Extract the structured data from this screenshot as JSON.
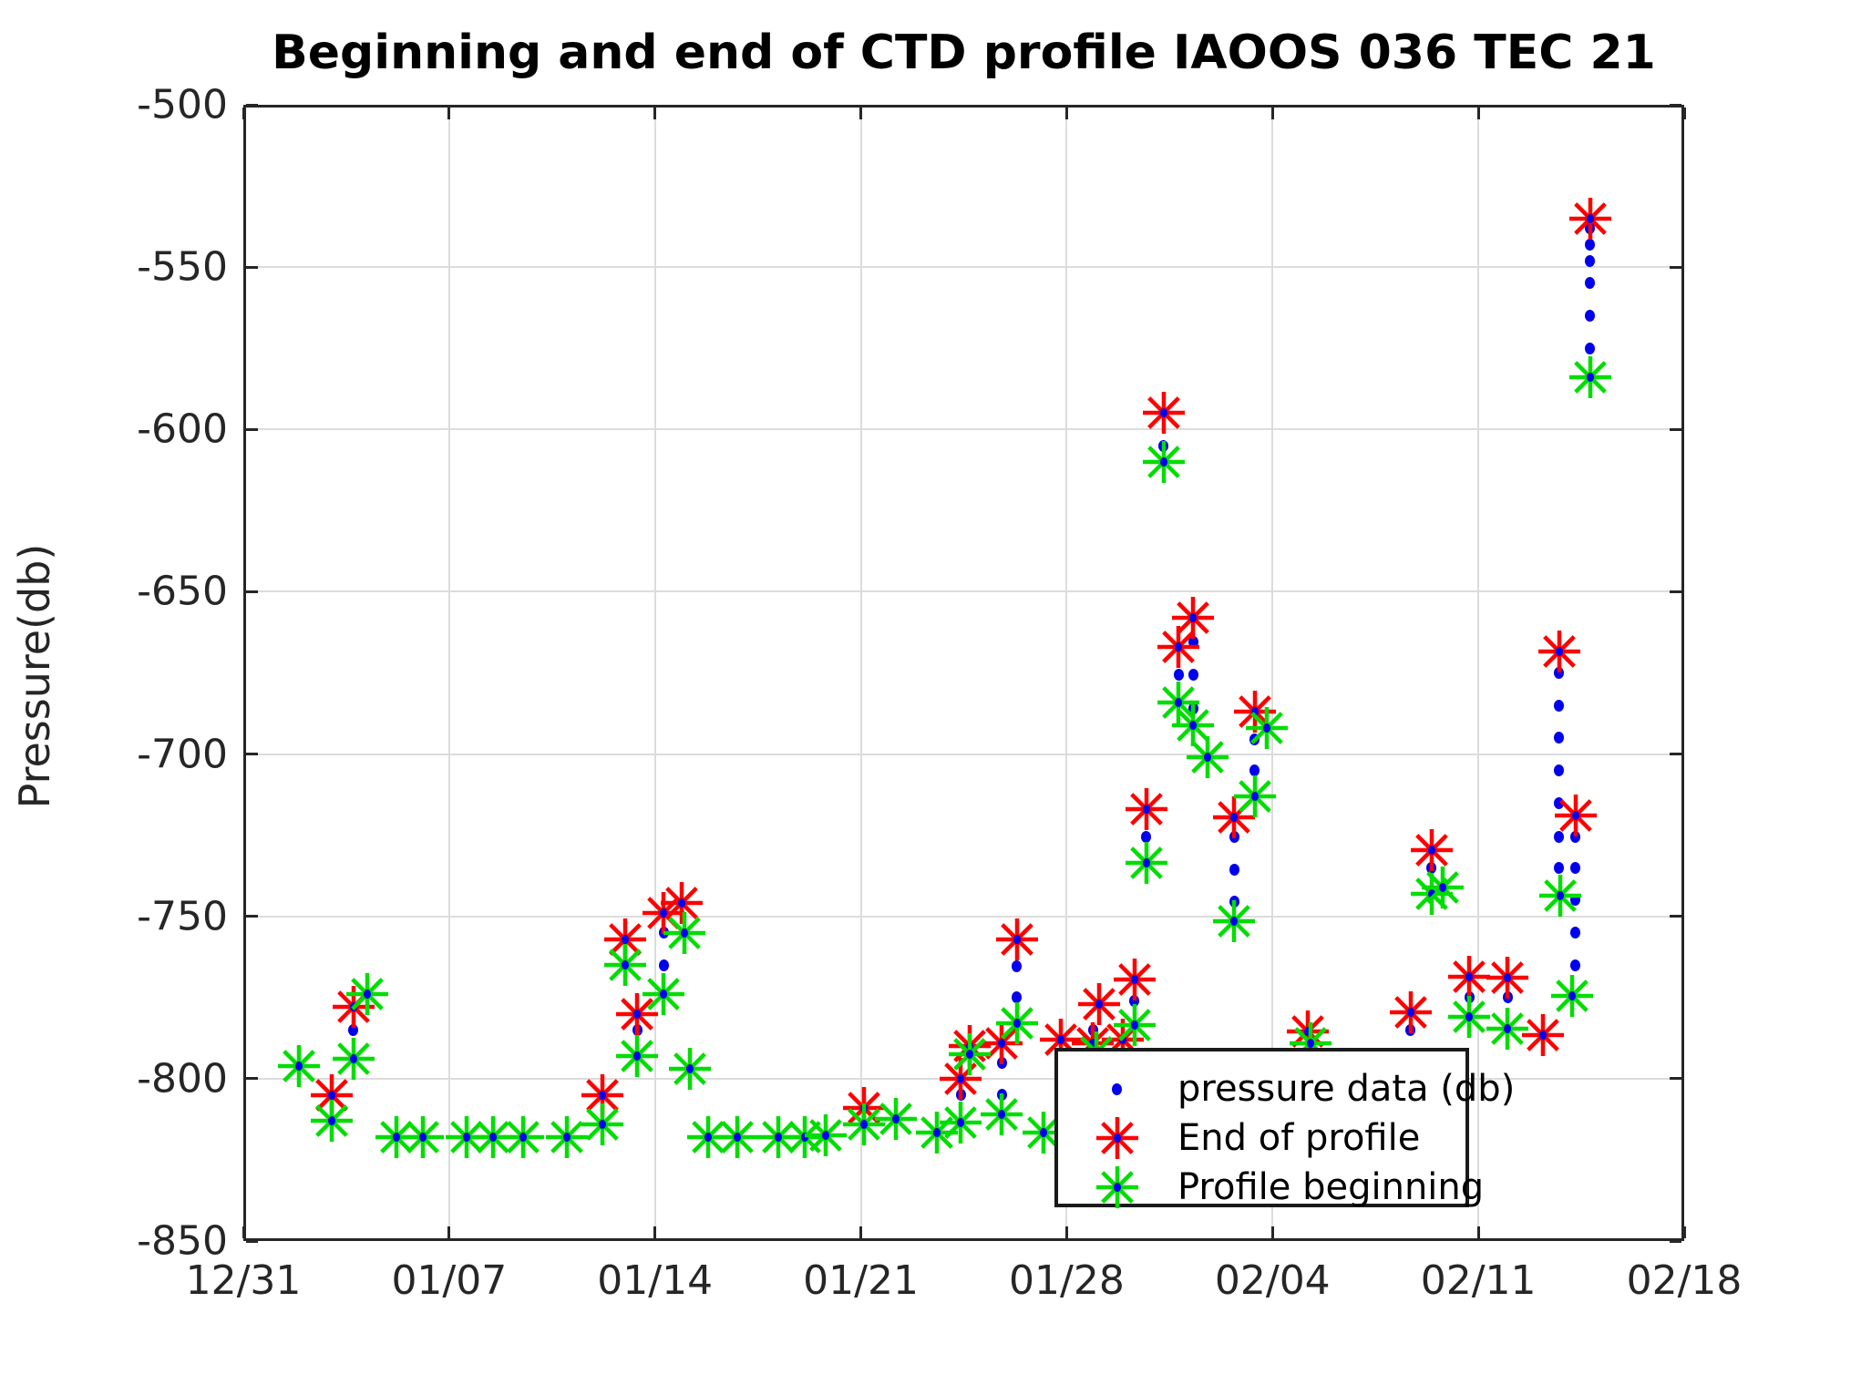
{
  "figure": {
    "title": "Beginning and end of CTD profile IAOOS 036 TEC 21",
    "ylabel": "Pressure(db)"
  },
  "chart_data": {
    "type": "scatter",
    "title": "Beginning and end of CTD profile IAOOS 036 TEC 21",
    "xlabel": "",
    "ylabel": "Pressure(db)",
    "grid": true,
    "x_axis": {
      "unit": "date (days after 12/31)",
      "tick_days": [
        0,
        7,
        14,
        21,
        28,
        35,
        42,
        49
      ],
      "tick_labels": [
        "12/31",
        "01/07",
        "01/14",
        "01/21",
        "01/28",
        "02/04",
        "02/11",
        "02/18"
      ],
      "range_days": [
        0,
        49
      ]
    },
    "y_axis": {
      "ticks": [
        -500,
        -550,
        -600,
        -650,
        -700,
        -750,
        -800,
        -850
      ],
      "range": [
        -850,
        -500
      ]
    },
    "legend": {
      "position": "inside lower right",
      "entries": [
        "pressure data (db)",
        "End of profile",
        "Profile beginning"
      ]
    },
    "series": [
      {
        "name": "pressure data (db)",
        "marker": "dot",
        "color": "#0000ee",
        "points": [
          [
            3.75,
            -785
          ],
          [
            13.4,
            -785
          ],
          [
            14.3,
            -755
          ],
          [
            14.3,
            -765
          ],
          [
            24.4,
            -805
          ],
          [
            25.8,
            -795
          ],
          [
            25.8,
            -805
          ],
          [
            26.3,
            -765.5
          ],
          [
            26.3,
            -775
          ],
          [
            28.9,
            -785
          ],
          [
            30.3,
            -776
          ],
          [
            30.7,
            -725.5
          ],
          [
            31.3,
            -605
          ],
          [
            31.8,
            -675.5
          ],
          [
            32.3,
            -665.5
          ],
          [
            32.3,
            -675.5
          ],
          [
            32.3,
            -686
          ],
          [
            33.7,
            -725.5
          ],
          [
            33.7,
            -735.5
          ],
          [
            33.7,
            -745.5
          ],
          [
            34.4,
            -695.5
          ],
          [
            34.4,
            -705
          ],
          [
            39.7,
            -785
          ],
          [
            40.4,
            -735
          ],
          [
            41.7,
            -775
          ],
          [
            43.0,
            -775
          ],
          [
            44.75,
            -675
          ],
          [
            44.75,
            -685
          ],
          [
            44.75,
            -695
          ],
          [
            44.75,
            -705
          ],
          [
            44.75,
            -715
          ],
          [
            44.75,
            -725.5
          ],
          [
            44.75,
            -735
          ],
          [
            45.3,
            -725.5
          ],
          [
            45.3,
            -735
          ],
          [
            45.3,
            -745
          ],
          [
            45.3,
            -755
          ],
          [
            45.3,
            -765
          ],
          [
            45.8,
            -538
          ],
          [
            45.8,
            -543
          ],
          [
            45.8,
            -548
          ],
          [
            45.8,
            -555
          ],
          [
            45.8,
            -565
          ],
          [
            45.8,
            -575
          ]
        ]
      },
      {
        "name": "End of profile",
        "marker": "asterisk",
        "color": "#ff0000",
        "points": [
          [
            3.0,
            -805
          ],
          [
            3.75,
            -778
          ],
          [
            12.2,
            -805
          ],
          [
            13.0,
            -757
          ],
          [
            13.4,
            -780
          ],
          [
            14.3,
            -749
          ],
          [
            14.9,
            -746
          ],
          [
            21.1,
            -809
          ],
          [
            24.4,
            -800
          ],
          [
            24.7,
            -790
          ],
          [
            25.8,
            -789
          ],
          [
            26.3,
            -757
          ],
          [
            27.8,
            -788
          ],
          [
            28.9,
            -789
          ],
          [
            29.1,
            -777
          ],
          [
            29.9,
            -788
          ],
          [
            30.3,
            -769.5
          ],
          [
            30.7,
            -717
          ],
          [
            31.3,
            -595
          ],
          [
            31.8,
            -667
          ],
          [
            32.3,
            -658
          ],
          [
            33.7,
            -719.5
          ],
          [
            34.4,
            -687
          ],
          [
            36.2,
            -785.5
          ],
          [
            39.7,
            -779.5
          ],
          [
            40.4,
            -729.5
          ],
          [
            41.7,
            -768.5
          ],
          [
            43.0,
            -769
          ],
          [
            44.2,
            -786.5
          ],
          [
            44.75,
            -668.5
          ],
          [
            45.3,
            -719
          ],
          [
            45.8,
            -535
          ]
        ]
      },
      {
        "name": "Profile beginning",
        "marker": "asterisk",
        "color": "#00dd00",
        "points": [
          [
            1.9,
            -796
          ],
          [
            3.0,
            -813
          ],
          [
            3.75,
            -794
          ],
          [
            4.2,
            -774
          ],
          [
            5.2,
            -818
          ],
          [
            6.1,
            -818
          ],
          [
            7.6,
            -818
          ],
          [
            8.5,
            -818
          ],
          [
            9.5,
            -818
          ],
          [
            11.0,
            -818
          ],
          [
            12.2,
            -814
          ],
          [
            13.0,
            -765
          ],
          [
            13.4,
            -793
          ],
          [
            14.3,
            -774
          ],
          [
            15.0,
            -755
          ],
          [
            15.2,
            -797
          ],
          [
            15.8,
            -818
          ],
          [
            16.8,
            -818
          ],
          [
            18.2,
            -818
          ],
          [
            19.1,
            -818
          ],
          [
            19.8,
            -817.5
          ],
          [
            21.1,
            -814
          ],
          [
            22.2,
            -812.5
          ],
          [
            23.6,
            -816.5
          ],
          [
            24.4,
            -813.5
          ],
          [
            24.7,
            -792.5
          ],
          [
            25.8,
            -811
          ],
          [
            26.3,
            -783
          ],
          [
            27.2,
            -816.5
          ],
          [
            29.0,
            -792
          ],
          [
            30.3,
            -783.5
          ],
          [
            30.7,
            -733.5
          ],
          [
            31.3,
            -610
          ],
          [
            31.8,
            -684
          ],
          [
            32.3,
            -691
          ],
          [
            32.8,
            -701
          ],
          [
            33.7,
            -751.5
          ],
          [
            34.4,
            -713
          ],
          [
            34.8,
            -692
          ],
          [
            36.3,
            -789
          ],
          [
            40.4,
            -743
          ],
          [
            40.8,
            -741
          ],
          [
            41.7,
            -781
          ],
          [
            43.0,
            -784.5
          ],
          [
            44.8,
            -743.5
          ],
          [
            45.2,
            -774.5
          ],
          [
            45.8,
            -584
          ]
        ]
      }
    ]
  }
}
